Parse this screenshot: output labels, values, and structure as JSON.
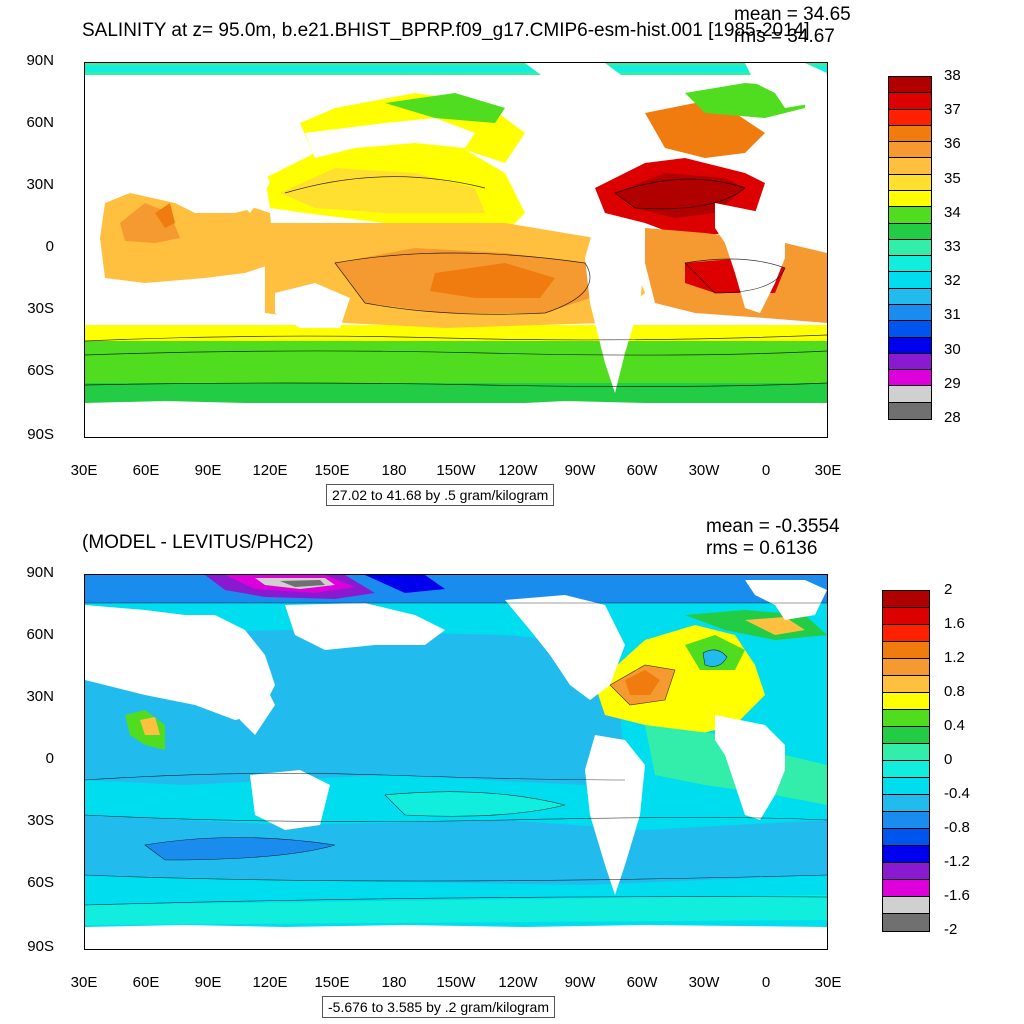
{
  "top": {
    "title": "SALINITY at z=  95.0m, b.e21.BHIST_BPRP.f09_g17.CMIP6-esm-hist.001 [1985-2014]",
    "mean": "mean = 34.65",
    "rms": "rms = 34.67",
    "range_note": "27.02 to 41.68 by .5 gram/kilogram",
    "colorbar_labels": [
      "38",
      "37",
      "36",
      "35",
      "34",
      "33",
      "32",
      "31",
      "30",
      "29",
      "28"
    ],
    "colorbar_colors": [
      "#b00000",
      "#dd0000",
      "#ff2000",
      "#f07c10",
      "#f59a30",
      "#ffc040",
      "#ffe030",
      "#ffff00",
      "#50dd20",
      "#22cc44",
      "#33eeaa",
      "#11eedd",
      "#00ddee",
      "#22bbee",
      "#1a8cee",
      "#0055ee",
      "#0000ee",
      "#8a1ad0",
      "#dd00dd",
      "#d0d0d0",
      "#707070"
    ]
  },
  "bottom": {
    "title": "(MODEL - LEVITUS/PHC2)",
    "mean": "mean = -0.3554",
    "rms": "rms = 0.6136",
    "range_note": "-5.676 to 3.585 by .2 gram/kilogram",
    "colorbar_labels": [
      "2",
      "1.6",
      "1.2",
      "0.8",
      "0.4",
      "0",
      "-0.4",
      "-0.8",
      "-1.2",
      "-1.6",
      "-2"
    ],
    "colorbar_colors": [
      "#b00000",
      "#dd0000",
      "#ff2000",
      "#f07c10",
      "#f59a30",
      "#ffc040",
      "#ffff00",
      "#50dd20",
      "#22cc44",
      "#33eeaa",
      "#11eedd",
      "#00ddee",
      "#22bbee",
      "#1a8cee",
      "#0055ee",
      "#0000ee",
      "#8a1ad0",
      "#dd00dd",
      "#d0d0d0",
      "#707070"
    ]
  },
  "axes": {
    "lat_labels": [
      "90N",
      "60N",
      "30N",
      "0",
      "30S",
      "60S",
      "90S"
    ],
    "lon_labels": [
      "30E",
      "60E",
      "90E",
      "120E",
      "150E",
      "180",
      "150W",
      "120W",
      "90W",
      "60W",
      "30W",
      "0",
      "30E"
    ]
  }
}
